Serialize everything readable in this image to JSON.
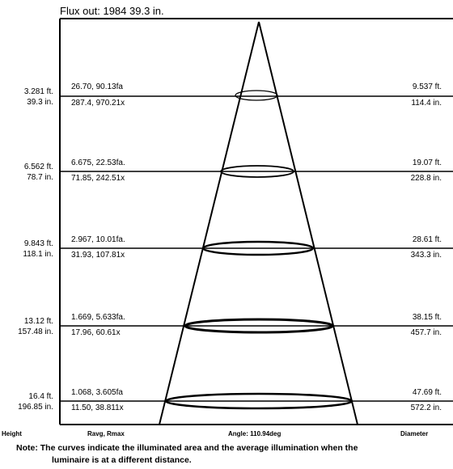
{
  "title": "Flux out: 1984 39.3 in.",
  "rows": [
    {
      "height_ft": "3.281 ft.",
      "height_in": "39.3 in.",
      "ravg": "26.70, 90.13fa",
      "rmax": "287.4, 970.21x",
      "dia_ft": "9.537 ft.",
      "dia_in": "114.4 in."
    },
    {
      "height_ft": "6.562 ft.",
      "height_in": "78.7 in.",
      "ravg": "6.675, 22.53fa.",
      "rmax": "71.85, 242.51x",
      "dia_ft": "19.07 ft.",
      "dia_in": "228.8 in."
    },
    {
      "height_ft": "9.843 ft.",
      "height_in": "118.1 in.",
      "ravg": "2.967, 10.01fa.",
      "rmax": "31.93, 107.81x",
      "dia_ft": "28.61 ft.",
      "dia_in": "343.3 in."
    },
    {
      "height_ft": "13.12 ft.",
      "height_in": "157.48 in.",
      "ravg": "1.669, 5.633fa.",
      "rmax": "17.96, 60.61x",
      "dia_ft": "38.15 ft.",
      "dia_in": "457.7 in."
    },
    {
      "height_ft": "16.4 ft.",
      "height_in": "196.85 in.",
      "ravg": "1.068, 3.605fa",
      "rmax": "11.50, 38.811x",
      "dia_ft": "47.69 ft.",
      "dia_in": "572.2 in."
    }
  ],
  "footer": {
    "height_label": "Height",
    "ravg_label": "Ravg, Rmax",
    "angle_label": "Angle: 110.94deg",
    "diameter_label": "Diameter"
  },
  "note": {
    "line1": "Note: The curves indicate the illuminated area and the average illumination when the",
    "line2": "luminaire is at a different distance."
  }
}
